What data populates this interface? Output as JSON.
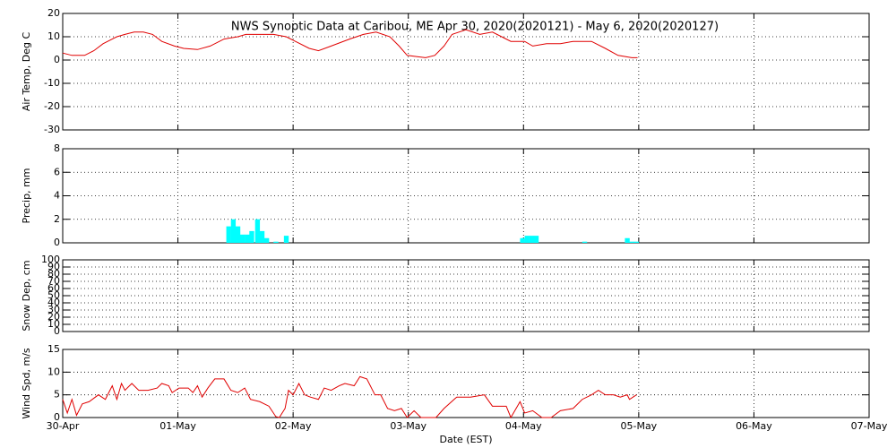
{
  "chart_data": [
    {
      "type": "line",
      "title": "NWS Synoptic Data at Caribou, ME   Apr 30, 2020(2020121) - May  6, 2020(2020127)",
      "y_label": "Air Temp, Deg C",
      "xlim": [
        0,
        7
      ],
      "ylim": [
        -30,
        20
      ],
      "yticks": [
        -30,
        -20,
        -10,
        0,
        10,
        20
      ],
      "xticks": [
        {
          "value": 0,
          "label": "30-Apr"
        },
        {
          "value": 1,
          "label": "01-May"
        },
        {
          "value": 2,
          "label": "02-May"
        },
        {
          "value": 3,
          "label": "03-May"
        },
        {
          "value": 4,
          "label": "04-May"
        },
        {
          "value": 5,
          "label": "05-May"
        },
        {
          "value": 6,
          "label": "06-May"
        },
        {
          "value": 7,
          "label": "07-May"
        }
      ],
      "grid": true,
      "color": "#e00000",
      "x": [
        0,
        0.08,
        0.19,
        0.27,
        0.35,
        0.47,
        0.54,
        0.62,
        0.7,
        0.78,
        0.86,
        0.97,
        1.05,
        1.17,
        1.28,
        1.4,
        1.52,
        1.59,
        1.71,
        1.83,
        1.94,
        2.02,
        2.14,
        2.22,
        2.33,
        2.49,
        2.61,
        2.72,
        2.84,
        2.92,
        2.99,
        3.07,
        3.15,
        3.23,
        3.31,
        3.38,
        3.5,
        3.62,
        3.73,
        3.81,
        3.89,
        4.01,
        4.08,
        4.2,
        4.32,
        4.43,
        4.59,
        4.71,
        4.82,
        4.94,
        4.99
      ],
      "values": [
        3,
        2,
        2,
        4,
        7,
        10,
        11,
        12,
        12,
        11,
        8,
        6,
        5,
        4.5,
        6,
        9,
        10,
        11,
        11,
        11,
        10,
        8,
        5,
        4,
        6,
        9,
        11,
        12,
        10,
        6,
        2,
        1.5,
        1,
        2,
        6,
        11,
        13,
        11,
        12,
        10,
        8,
        8,
        6,
        7,
        7,
        8,
        8,
        5,
        2,
        1,
        1
      ]
    },
    {
      "type": "bar",
      "y_label": "Precip, mm",
      "xlim": [
        0,
        7
      ],
      "ylim": [
        0,
        8
      ],
      "yticks": [
        0,
        2,
        4,
        6,
        8
      ],
      "xticks": [
        {
          "value": 0,
          "label": "30-Apr"
        },
        {
          "value": 1,
          "label": "01-May"
        },
        {
          "value": 2,
          "label": "02-May"
        },
        {
          "value": 3,
          "label": "03-May"
        },
        {
          "value": 4,
          "label": "04-May"
        },
        {
          "value": 5,
          "label": "05-May"
        },
        {
          "value": 6,
          "label": "06-May"
        },
        {
          "value": 7,
          "label": "07-May"
        }
      ],
      "grid": true,
      "color": "#00ffff",
      "x": [
        1.42,
        1.46,
        1.5,
        1.54,
        1.58,
        1.62,
        1.67,
        1.71,
        1.75,
        1.83,
        1.92,
        3.97,
        4.01,
        4.05,
        4.09,
        4.51,
        4.88,
        4.92,
        4.96
      ],
      "values": [
        1.4,
        2,
        1.4,
        0.7,
        0.7,
        1.0,
        2,
        1.0,
        0.4,
        0.1,
        0.6,
        0.4,
        0.6,
        0.6,
        0.6,
        0.1,
        0.4,
        0.1,
        0.1
      ]
    },
    {
      "type": "line",
      "y_label": "Snow Dep, cm",
      "xlim": [
        0,
        7
      ],
      "ylim": [
        0,
        100
      ],
      "yticks": [
        0,
        10,
        20,
        30,
        40,
        50,
        60,
        70,
        80,
        90,
        100
      ],
      "xticks": [
        {
          "value": 0,
          "label": "30-Apr"
        },
        {
          "value": 1,
          "label": "01-May"
        },
        {
          "value": 2,
          "label": "02-May"
        },
        {
          "value": 3,
          "label": "03-May"
        },
        {
          "value": 4,
          "label": "04-May"
        },
        {
          "value": 5,
          "label": "05-May"
        },
        {
          "value": 6,
          "label": "06-May"
        },
        {
          "value": 7,
          "label": "07-May"
        }
      ],
      "grid": true,
      "color": "#e00000",
      "x": [],
      "values": []
    },
    {
      "type": "line",
      "y_label": "Wind Spd, m/s",
      "x_label": "Date (EST)",
      "xlim": [
        0,
        7
      ],
      "ylim": [
        0,
        15
      ],
      "yticks": [
        0,
        5,
        10,
        15
      ],
      "xticks": [
        {
          "value": 0,
          "label": "30-Apr"
        },
        {
          "value": 1,
          "label": "01-May"
        },
        {
          "value": 2,
          "label": "02-May"
        },
        {
          "value": 3,
          "label": "03-May"
        },
        {
          "value": 4,
          "label": "04-May"
        },
        {
          "value": 5,
          "label": "05-May"
        },
        {
          "value": 6,
          "label": "06-May"
        },
        {
          "value": 7,
          "label": "07-May"
        }
      ],
      "grid": true,
      "color": "#e00000",
      "x": [
        0,
        0.04,
        0.08,
        0.12,
        0.17,
        0.23,
        0.31,
        0.37,
        0.43,
        0.47,
        0.51,
        0.54,
        0.6,
        0.66,
        0.74,
        0.82,
        0.86,
        0.92,
        0.95,
        1.01,
        1.09,
        1.13,
        1.17,
        1.21,
        1.26,
        1.32,
        1.4,
        1.46,
        1.52,
        1.58,
        1.63,
        1.71,
        1.79,
        1.85,
        1.88,
        1.93,
        1.96,
        2.0,
        2.05,
        2.1,
        2.15,
        2.22,
        2.27,
        2.33,
        2.4,
        2.45,
        2.53,
        2.58,
        2.64,
        2.71,
        2.76,
        2.82,
        2.88,
        2.94,
        2.99,
        3.05,
        3.11,
        3.19,
        3.24,
        3.31,
        3.42,
        3.54,
        3.66,
        3.73,
        3.85,
        3.89,
        3.97,
        4.01,
        4.08,
        4.16,
        4.24,
        4.32,
        4.43,
        4.51,
        4.59,
        4.65,
        4.71,
        4.78,
        4.84,
        4.9,
        4.92,
        4.98
      ],
      "values": [
        4,
        1,
        4,
        0.5,
        3,
        3.5,
        5,
        4,
        7,
        4,
        7.5,
        6,
        7.5,
        6,
        6,
        6.5,
        7.5,
        7,
        5.5,
        6.5,
        6.5,
        5.5,
        7,
        4.5,
        6.5,
        8.5,
        8.5,
        6,
        5.5,
        6.5,
        4,
        3.5,
        2.5,
        0.2,
        0,
        2,
        6,
        5,
        7.5,
        5,
        4.5,
        4,
        6.5,
        6,
        7,
        7.5,
        7,
        9,
        8.5,
        5,
        5,
        2,
        1.5,
        2,
        0,
        1.5,
        0,
        0,
        0,
        2,
        4.5,
        4.5,
        5,
        2.5,
        2.5,
        0,
        3.5,
        1,
        1.5,
        0,
        0,
        1.5,
        2,
        4,
        5,
        6,
        5,
        5,
        4.5,
        5,
        4,
        5
      ]
    }
  ]
}
